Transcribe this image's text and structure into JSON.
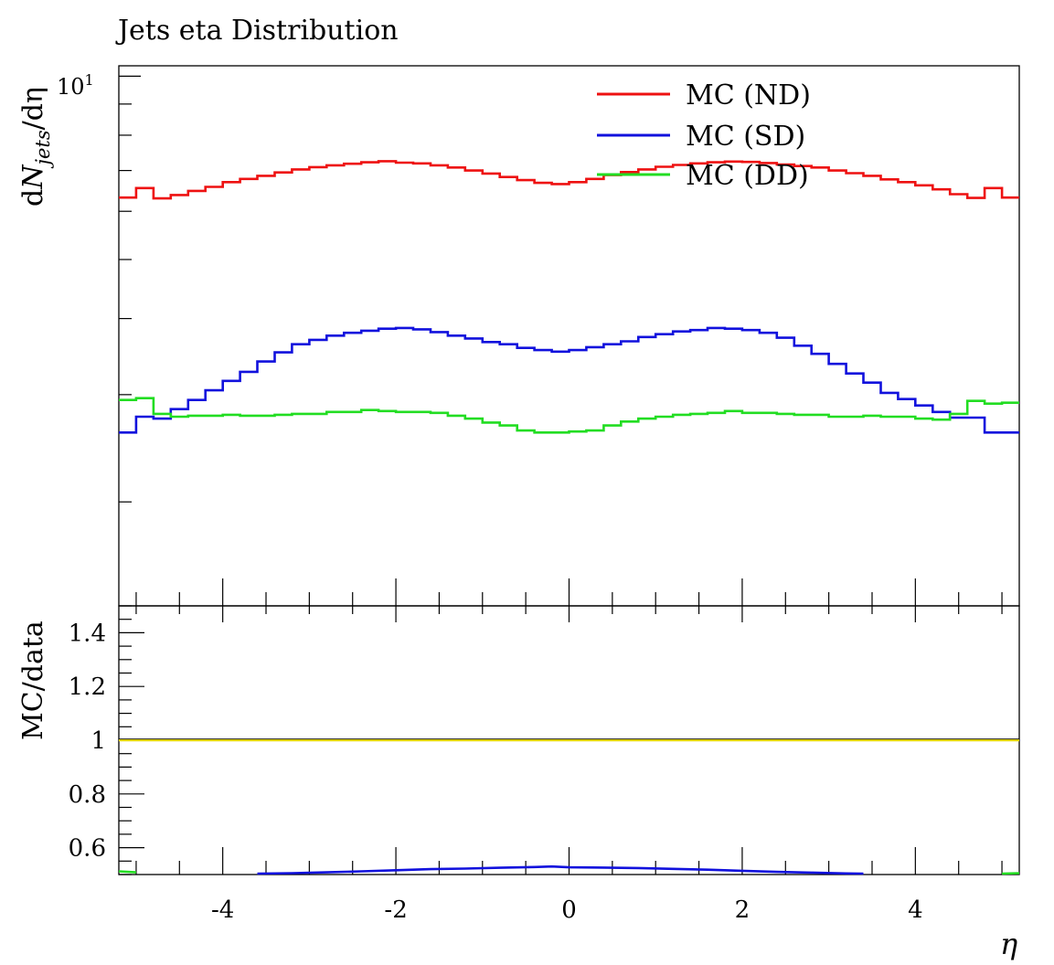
{
  "title": "Jets eta Distribution",
  "colors": {
    "nd": "#ee1111",
    "sd": "#1111dd",
    "dd": "#22dd22",
    "ref": "#e6d800",
    "frame": "#000000"
  },
  "chart_data": [
    {
      "type": "line",
      "panel": "main",
      "title": "Jets eta Distribution",
      "xlabel": "η",
      "ylabel": "dN_jets/dη",
      "ylabel_parts": {
        "d": "d",
        "N": "N",
        "sub": "jets",
        "rest": "/dη"
      },
      "yscale": "log",
      "ylim": [
        1.35,
        10.4
      ],
      "xlim": [
        -5.2,
        5.2
      ],
      "ytick_labels": [
        {
          "base": "10",
          "exp": "1",
          "value": 10
        }
      ],
      "grid": false,
      "legend_position": "top-right",
      "x_edges": [
        -5.2,
        -5.0,
        -4.8,
        -4.6,
        -4.4,
        -4.2,
        -4.0,
        -3.8,
        -3.6,
        -3.4,
        -3.2,
        -3.0,
        -2.8,
        -2.6,
        -2.4,
        -2.2,
        -2.0,
        -1.8,
        -1.6,
        -1.4,
        -1.2,
        -1.0,
        -0.8,
        -0.6,
        -0.4,
        -0.2,
        0.0,
        0.2,
        0.4,
        0.6,
        0.8,
        1.0,
        1.2,
        1.4,
        1.6,
        1.8,
        2.0,
        2.2,
        2.4,
        2.6,
        2.8,
        3.0,
        3.2,
        3.4,
        3.6,
        3.8,
        4.0,
        4.2,
        4.4,
        4.6,
        4.8,
        5.0,
        5.2
      ],
      "series": [
        {
          "name": "MC (ND)",
          "key": "nd",
          "values": [
            6.32,
            6.55,
            6.3,
            6.38,
            6.48,
            6.58,
            6.7,
            6.78,
            6.86,
            6.95,
            7.03,
            7.09,
            7.14,
            7.18,
            7.22,
            7.25,
            7.21,
            7.19,
            7.14,
            7.08,
            7.0,
            6.92,
            6.83,
            6.75,
            6.68,
            6.65,
            6.7,
            6.78,
            6.88,
            6.96,
            7.03,
            7.1,
            7.15,
            7.19,
            7.22,
            7.24,
            7.23,
            7.2,
            7.16,
            7.12,
            7.08,
            7.0,
            6.93,
            6.86,
            6.77,
            6.7,
            6.62,
            6.52,
            6.4,
            6.31,
            6.55,
            6.32
          ]
        },
        {
          "name": "MC (SD)",
          "key": "sd",
          "values": [
            2.6,
            2.76,
            2.74,
            2.84,
            2.94,
            3.05,
            3.16,
            3.27,
            3.4,
            3.52,
            3.63,
            3.69,
            3.75,
            3.79,
            3.82,
            3.85,
            3.86,
            3.84,
            3.8,
            3.75,
            3.71,
            3.66,
            3.63,
            3.58,
            3.55,
            3.53,
            3.55,
            3.59,
            3.63,
            3.67,
            3.73,
            3.77,
            3.81,
            3.83,
            3.86,
            3.85,
            3.83,
            3.79,
            3.72,
            3.61,
            3.5,
            3.37,
            3.25,
            3.14,
            3.02,
            2.95,
            2.88,
            2.81,
            2.75,
            2.75,
            2.6,
            2.6
          ]
        },
        {
          "name": "MC (DD)",
          "key": "dd",
          "values": [
            2.94,
            2.96,
            2.79,
            2.76,
            2.77,
            2.77,
            2.78,
            2.77,
            2.77,
            2.78,
            2.79,
            2.79,
            2.81,
            2.81,
            2.83,
            2.82,
            2.81,
            2.81,
            2.8,
            2.77,
            2.74,
            2.7,
            2.67,
            2.62,
            2.6,
            2.6,
            2.61,
            2.62,
            2.67,
            2.71,
            2.74,
            2.76,
            2.78,
            2.79,
            2.8,
            2.82,
            2.8,
            2.8,
            2.79,
            2.78,
            2.78,
            2.76,
            2.76,
            2.77,
            2.76,
            2.76,
            2.74,
            2.73,
            2.79,
            2.93,
            2.9,
            2.91
          ]
        }
      ]
    },
    {
      "type": "line",
      "panel": "ratio",
      "xlabel": "η",
      "ylabel": "MC/data",
      "ylim": [
        0.5,
        1.5
      ],
      "xlim": [
        -5.2,
        5.2
      ],
      "ytick_labels": [
        "0.6",
        "0.8",
        "1",
        "1.2",
        "1.4"
      ],
      "xtick_labels": [
        "-4",
        "-2",
        "0",
        "2",
        "4"
      ],
      "grid": false,
      "reference_line": 1.0,
      "series": [
        {
          "key": "nd",
          "x": [],
          "values": []
        },
        {
          "key": "sd",
          "x": [
            -3.6,
            -3.2,
            -2.8,
            -2.4,
            -2.0,
            -1.6,
            -1.2,
            -0.8,
            -0.4,
            -0.2,
            0.0,
            0.4,
            0.8,
            1.2,
            1.6,
            2.0,
            2.4,
            2.8,
            3.2,
            3.4
          ],
          "values": [
            0.502,
            0.505,
            0.508,
            0.512,
            0.516,
            0.52,
            0.522,
            0.525,
            0.528,
            0.53,
            0.527,
            0.526,
            0.524,
            0.521,
            0.518,
            0.514,
            0.51,
            0.507,
            0.504,
            0.501
          ]
        },
        {
          "key": "dd",
          "x": [
            -5.2,
            -5.0,
            5.0,
            5.2
          ],
          "values": [
            0.512,
            0.508,
            0.503,
            0.505
          ]
        }
      ]
    }
  ]
}
